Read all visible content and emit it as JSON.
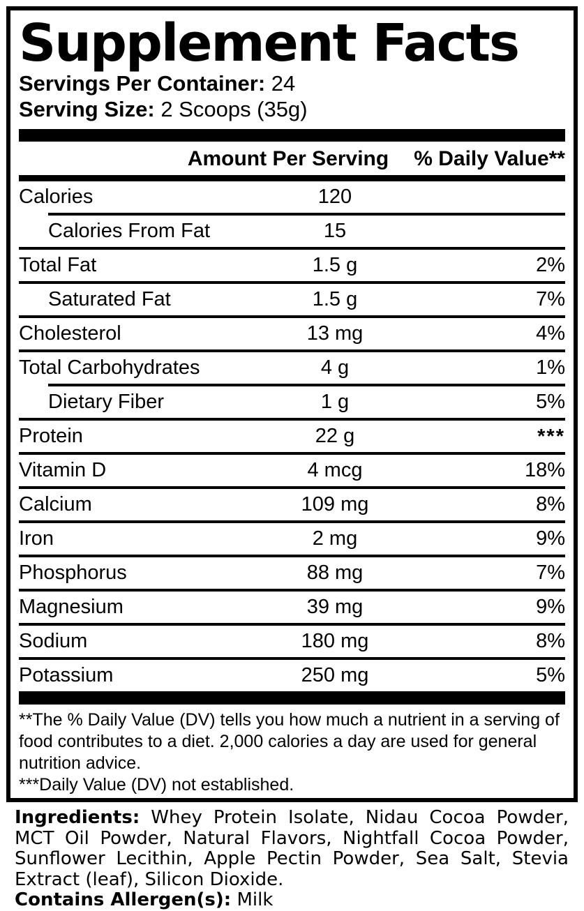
{
  "colors": {
    "text": "#000000",
    "background": "#ffffff"
  },
  "label": {
    "title": "Supplement Facts",
    "servings_per_container_label": "Servings Per Container:",
    "servings_per_container_value": "24",
    "serving_size_label": "Serving Size:",
    "serving_size_value": "2 Scoops (35g)",
    "header": {
      "amount_per_serving": "Amount Per Serving",
      "percent_daily_value": "% Daily Value**"
    },
    "rows": [
      {
        "name": "Calories",
        "amount": "120",
        "dv": "",
        "indent": false,
        "sep_above": "none"
      },
      {
        "name": "Calories From Fat",
        "amount": "15",
        "dv": "",
        "indent": true,
        "sep_above": "indent"
      },
      {
        "name": "Total Fat",
        "amount": "1.5 g",
        "dv": "2%",
        "indent": false,
        "sep_above": "full"
      },
      {
        "name": "Saturated Fat",
        "amount": "1.5 g",
        "dv": "7%",
        "indent": true,
        "sep_above": "full"
      },
      {
        "name": "Cholesterol",
        "amount": "13 mg",
        "dv": "4%",
        "indent": false,
        "sep_above": "full"
      },
      {
        "name": "Total Carbohydrates",
        "amount": "4 g",
        "dv": "1%",
        "indent": false,
        "sep_above": "full"
      },
      {
        "name": "Dietary Fiber",
        "amount": "1 g",
        "dv": "5%",
        "indent": true,
        "sep_above": "indent"
      },
      {
        "name": "Protein",
        "amount": "22 g",
        "dv": "***",
        "indent": false,
        "sep_above": "full",
        "dv_raised": true
      },
      {
        "name": "Vitamin D",
        "amount": "4 mcg",
        "dv": "18%",
        "indent": false,
        "sep_above": "full"
      },
      {
        "name": "Calcium",
        "amount": "109 mg",
        "dv": "8%",
        "indent": false,
        "sep_above": "full"
      },
      {
        "name": "Iron",
        "amount": "2 mg",
        "dv": "9%",
        "indent": false,
        "sep_above": "full"
      },
      {
        "name": "Phosphorus",
        "amount": "88 mg",
        "dv": "7%",
        "indent": false,
        "sep_above": "full"
      },
      {
        "name": "Magnesium",
        "amount": "39 mg",
        "dv": "9%",
        "indent": false,
        "sep_above": "full"
      },
      {
        "name": "Sodium",
        "amount": "180 mg",
        "dv": "8%",
        "indent": false,
        "sep_above": "full"
      },
      {
        "name": "Potassium",
        "amount": "250 mg",
        "dv": "5%",
        "indent": false,
        "sep_above": "full"
      }
    ],
    "footnotes": [
      "**The % Daily Value (DV) tells you how much a nutrient in a serving of food contributes to a diet. 2,000 calories a day are used for general nutrition advice.",
      "***Daily Value (DV) not established."
    ]
  },
  "ingredients": {
    "label": "Ingredients:",
    "text": "Whey Protein Isolate, Nidau Cocoa Powder, MCT Oil Powder, Natural Flavors, Nightfall Cocoa Powder, Sunflower Lecithin, Apple Pectin Powder, Sea Salt, Stevia Extract (leaf), Silicon Dioxide.",
    "allergen_label": "Contains Allergen(s):",
    "allergen_value": "Milk"
  }
}
